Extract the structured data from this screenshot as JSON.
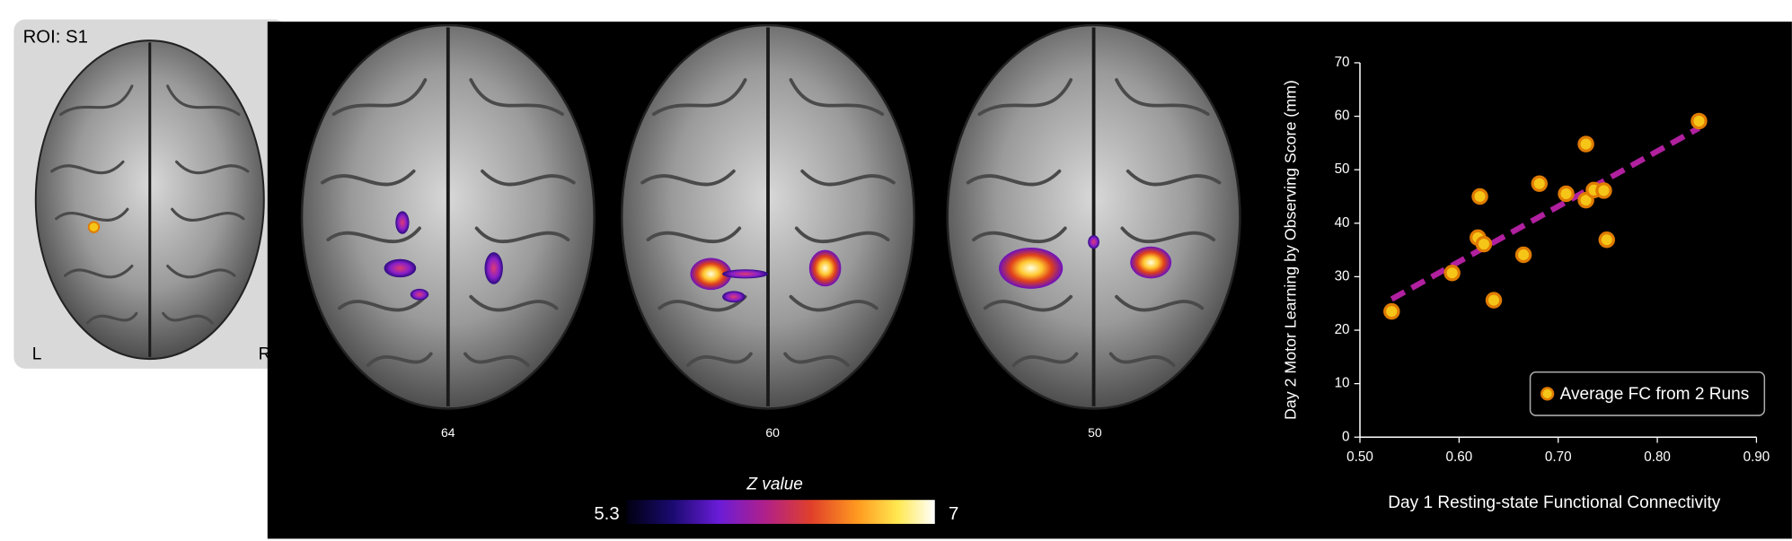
{
  "roi_panel": {
    "title": "ROI: S1",
    "left_label": "L",
    "right_label": "R"
  },
  "slices": [
    "64",
    "60",
    "50"
  ],
  "colorbar": {
    "title": "Z value",
    "min": 5.3,
    "max": 7
  },
  "chart_data": {
    "type": "scatter",
    "x_label": "Day 1 Resting-state Functional Connectivity",
    "y_label": "Day 2 Motor Learning by Observing Score (mm)",
    "xlim": [
      0.5,
      0.9
    ],
    "xticks": [
      {
        "value": 0.5,
        "label": "0.50"
      },
      {
        "value": 0.6,
        "label": "0.60"
      },
      {
        "value": 0.7,
        "label": "0.70"
      },
      {
        "value": 0.8,
        "label": "0.80"
      },
      {
        "value": 0.9,
        "label": "0.90"
      }
    ],
    "ylim": [
      0,
      70
    ],
    "yticks": [
      0,
      10,
      20,
      30,
      40,
      50,
      60,
      70
    ],
    "grid": false,
    "legend": "lower right",
    "series": [
      {
        "name": "Average FC from 2 Runs",
        "color": "#f5c518",
        "edge_color": "#e07b00",
        "x": [
          0.532,
          0.593,
          0.621,
          0.619,
          0.625,
          0.635,
          0.665,
          0.681,
          0.708,
          0.728,
          0.728,
          0.736,
          0.746,
          0.749,
          0.842
        ],
        "y": [
          23.5,
          30.7,
          45.0,
          37.3,
          36.1,
          25.6,
          34.1,
          47.4,
          45.5,
          54.8,
          44.3,
          46.2,
          46.1,
          36.9,
          59.1
        ]
      }
    ],
    "trendline": {
      "color": "#b0209f",
      "x": [
        0.532,
        0.842
      ],
      "y": [
        25.8,
        57.8
      ]
    }
  }
}
